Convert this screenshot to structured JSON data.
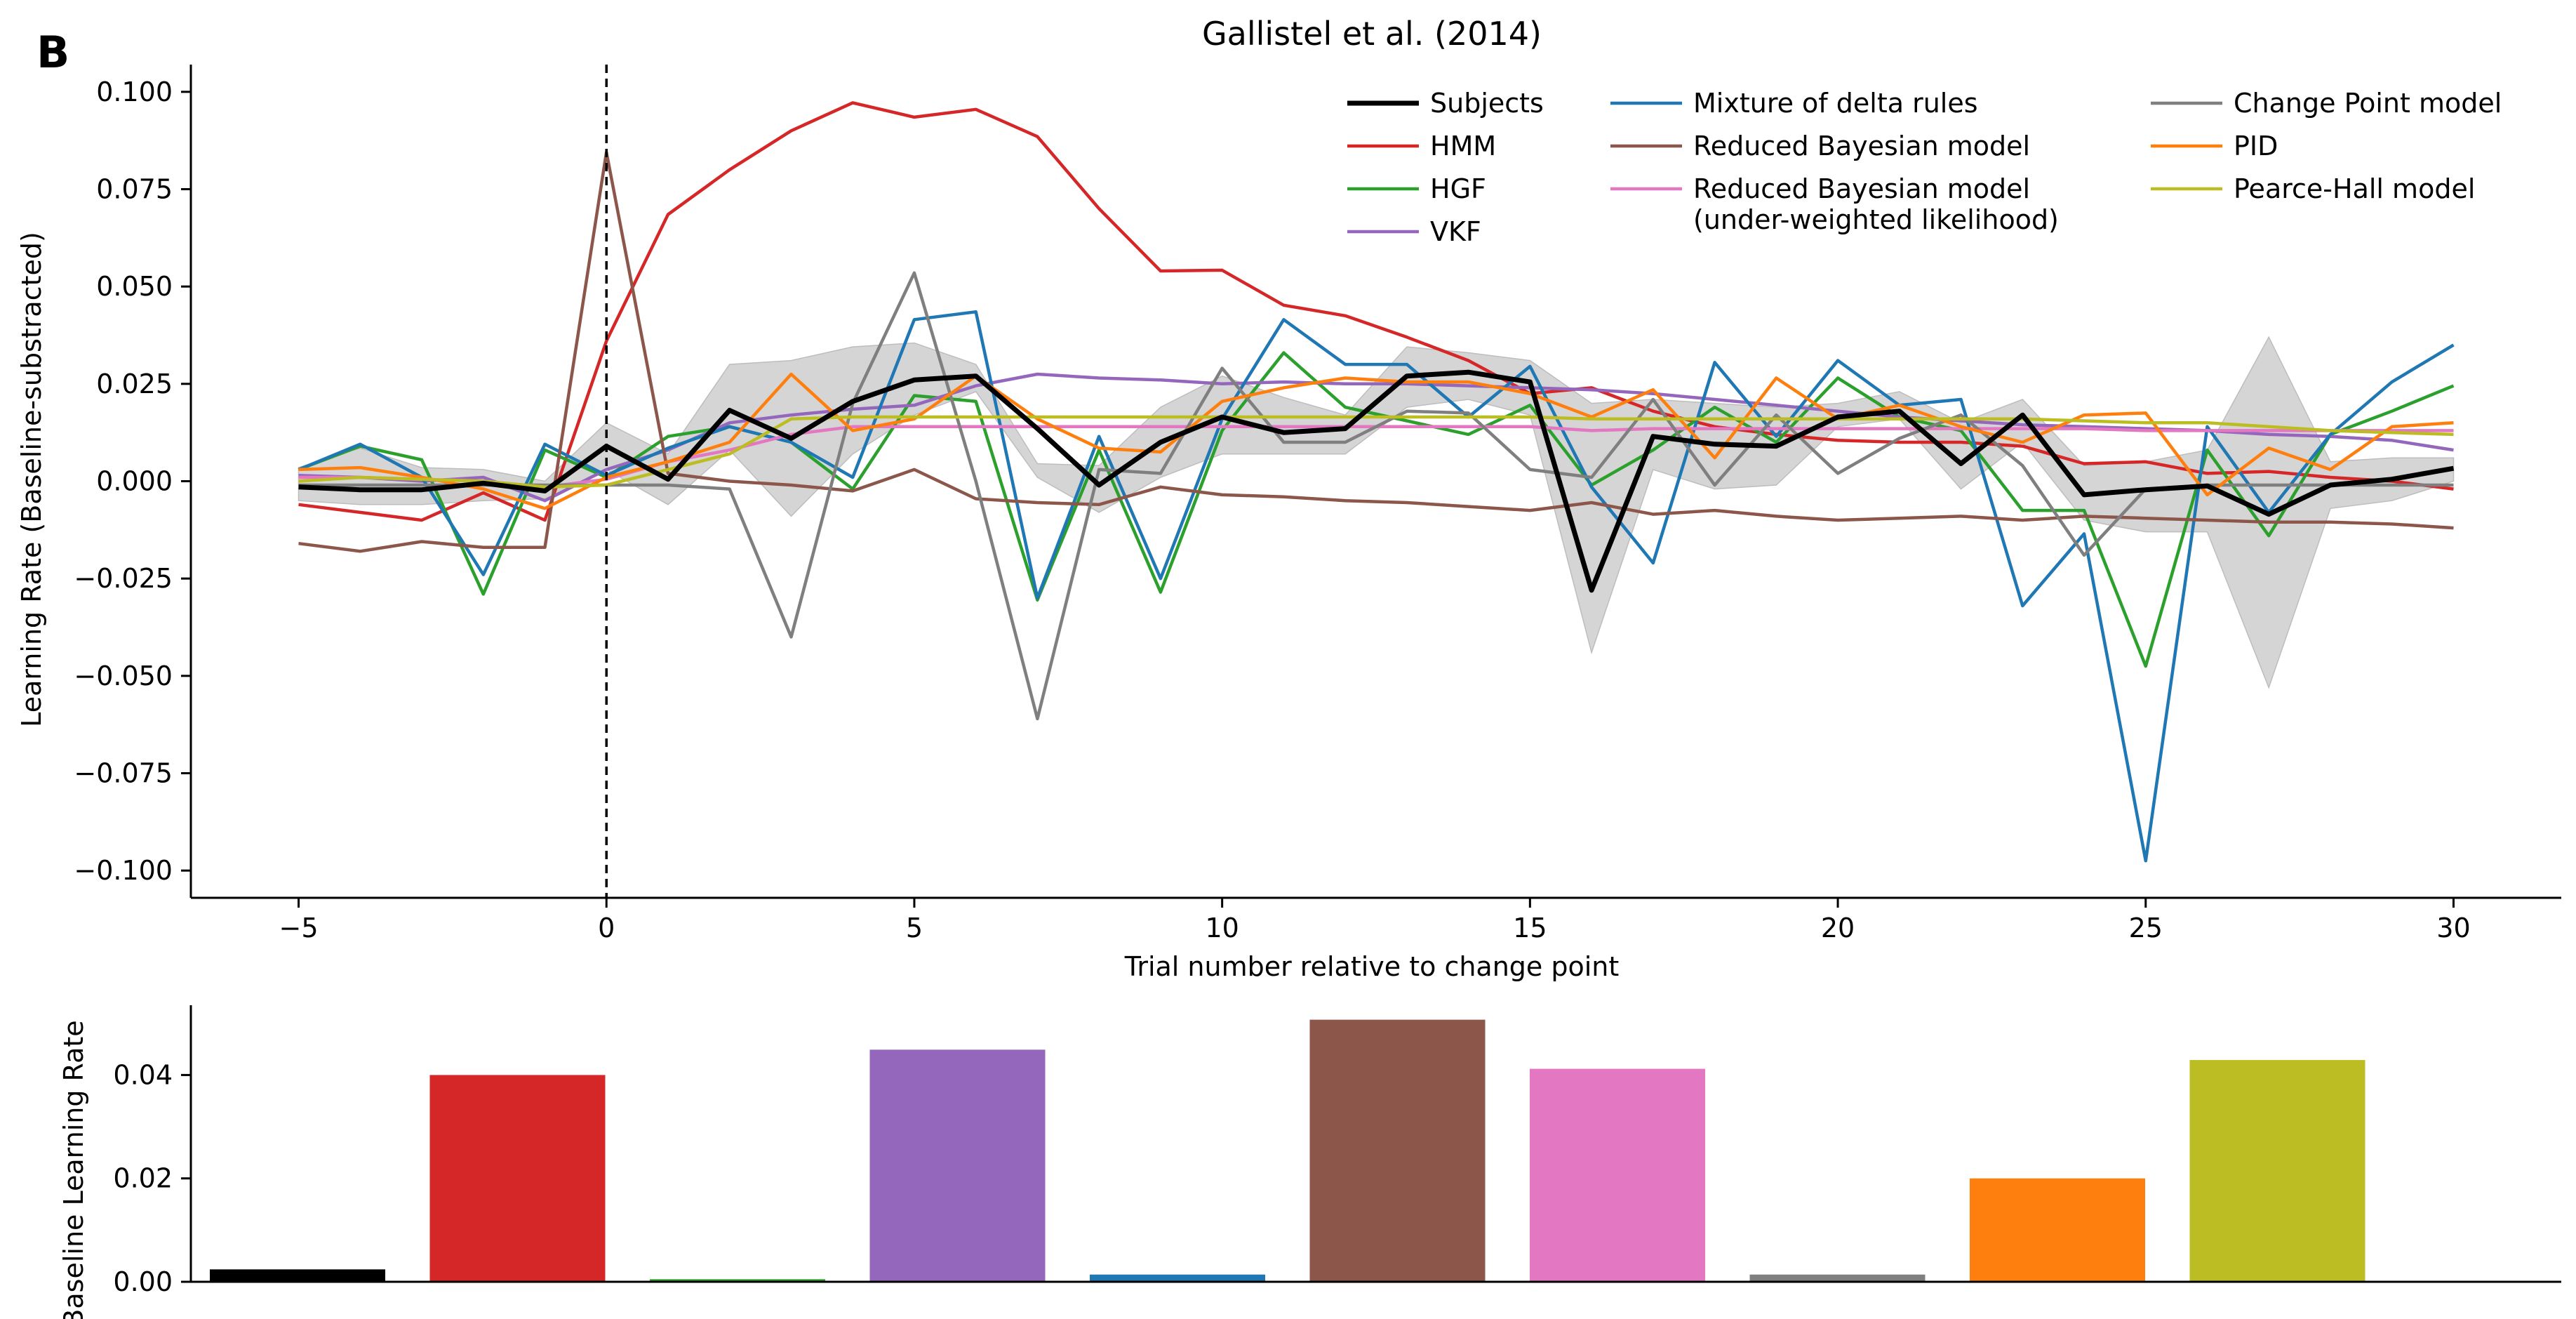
{
  "figure": {
    "panel_letter": "B",
    "title": "Gallistel et al. (2014)"
  },
  "chart_data": [
    {
      "type": "line",
      "title": "Gallistel et al. (2014)",
      "xlabel": "Trial number relative to change point",
      "ylabel": "Learning Rate (Baseline-substracted)",
      "xlim": [
        -6.75,
        31.75
      ],
      "ylim": [
        -0.107,
        0.107
      ],
      "x_ticks": [
        -5,
        0,
        5,
        10,
        15,
        20,
        25,
        30
      ],
      "x_tick_labels": [
        "−5",
        "0",
        "5",
        "10",
        "15",
        "20",
        "25",
        "30"
      ],
      "y_ticks": [
        0.1,
        0.075,
        0.05,
        0.025,
        0.0,
        -0.025,
        -0.05,
        -0.075,
        -0.1
      ],
      "y_tick_labels": [
        "0.100",
        "0.075",
        "0.050",
        "0.025",
        "0.000",
        "−0.025",
        "−0.050",
        "−0.075",
        "−0.100"
      ],
      "vertical_line_x": 0,
      "grid": false,
      "legend": {
        "position": "top-right",
        "columns": 3
      },
      "x": [
        -5,
        -4,
        -3,
        -2,
        -1,
        0,
        1,
        2,
        3,
        4,
        5,
        6,
        7,
        8,
        9,
        10,
        11,
        12,
        13,
        14,
        15,
        16,
        17,
        18,
        19,
        20,
        21,
        22,
        23,
        24,
        25,
        26,
        27,
        28,
        29,
        30
      ],
      "subjects_band": {
        "color": "#d3d3d3",
        "upper": [
          0.0035,
          0.0085,
          0.0035,
          0.003,
          0.0,
          0.015,
          0.007,
          0.03,
          0.031,
          0.0345,
          0.0355,
          0.03,
          0.0045,
          0.004,
          0.019,
          0.027,
          0.0215,
          0.017,
          0.0345,
          0.033,
          0.031,
          0.02,
          0.021,
          0.02,
          0.019,
          0.02,
          0.023,
          0.015,
          0.021,
          0.004,
          0.005,
          0.008,
          0.037,
          0.005,
          0.006,
          0.006
        ],
        "lower": [
          -0.005,
          -0.006,
          -0.006,
          -0.005,
          -0.0045,
          0.003,
          -0.006,
          0.008,
          -0.009,
          0.007,
          0.017,
          0.023,
          0.001,
          -0.008,
          0.001,
          0.007,
          0.007,
          0.007,
          0.019,
          0.021,
          0.017,
          -0.044,
          0.003,
          -0.002,
          -0.001,
          0.014,
          0.016,
          -0.002,
          0.01,
          -0.01,
          -0.013,
          -0.013,
          -0.053,
          -0.007,
          -0.005,
          0.0
        ]
      },
      "series": [
        {
          "name": "Subjects",
          "color": "#000000",
          "width": 7,
          "values": [
            -0.0015,
            -0.0022,
            -0.0022,
            -0.0005,
            -0.0025,
            0.009,
            0.0005,
            0.0182,
            0.011,
            0.0205,
            0.026,
            0.027,
            0.0135,
            -0.001,
            0.01,
            0.0165,
            0.0125,
            0.0135,
            0.027,
            0.028,
            0.0255,
            -0.028,
            0.0115,
            0.0095,
            0.009,
            0.0165,
            0.018,
            0.0045,
            0.017,
            -0.0035,
            -0.0022,
            -0.0012,
            -0.0085,
            -0.001,
            0.0005,
            0.0033
          ]
        },
        {
          "name": "HMM",
          "color": "#d62728",
          "width": 4.5,
          "values": [
            -0.006,
            -0.008,
            -0.01,
            -0.003,
            -0.01,
            0.036,
            0.0685,
            0.08,
            0.09,
            0.0972,
            0.0935,
            0.0955,
            0.0885,
            0.07,
            0.054,
            0.0542,
            0.0452,
            0.0425,
            0.037,
            0.031,
            0.0225,
            0.024,
            0.018,
            0.014,
            0.012,
            0.0105,
            0.01,
            0.01,
            0.009,
            0.0045,
            0.005,
            0.002,
            0.0025,
            0.001,
            0.0,
            -0.002
          ]
        },
        {
          "name": "HGF",
          "color": "#2ca02c",
          "width": 4.5,
          "values": [
            0.003,
            0.009,
            0.0055,
            -0.029,
            0.008,
            0.001,
            0.0115,
            0.014,
            0.01,
            -0.002,
            0.022,
            0.0205,
            -0.0305,
            0.008,
            -0.0285,
            0.013,
            0.033,
            0.019,
            0.0155,
            0.012,
            0.0195,
            -0.001,
            0.008,
            0.019,
            0.01,
            0.0265,
            0.0165,
            0.013,
            -0.0075,
            -0.0075,
            -0.0475,
            0.008,
            -0.014,
            0.012,
            0.018,
            0.0245
          ]
        },
        {
          "name": "VKF",
          "color": "#9467bd",
          "width": 4.5,
          "values": [
            0.0015,
            0.001,
            0.0,
            0.001,
            -0.005,
            0.003,
            0.008,
            0.015,
            0.017,
            0.0185,
            0.0195,
            0.0245,
            0.0275,
            0.0265,
            0.026,
            0.025,
            0.0255,
            0.025,
            0.025,
            0.0245,
            0.024,
            0.0235,
            0.0225,
            0.021,
            0.0195,
            0.018,
            0.0165,
            0.0155,
            0.0145,
            0.014,
            0.0135,
            0.013,
            0.012,
            0.0115,
            0.0105,
            0.008
          ]
        },
        {
          "name": "Mixture of delta rules",
          "color": "#1f77b4",
          "width": 4.5,
          "values": [
            0.003,
            0.0095,
            0.001,
            -0.024,
            0.0095,
            0.0015,
            0.0085,
            0.014,
            0.01,
            0.001,
            0.0415,
            0.0435,
            -0.03,
            0.0115,
            -0.025,
            0.016,
            0.0415,
            0.03,
            0.03,
            0.0165,
            0.0295,
            -0.0015,
            -0.021,
            0.0305,
            0.0115,
            0.031,
            0.0195,
            0.021,
            -0.032,
            -0.0135,
            -0.0975,
            0.014,
            -0.008,
            0.012,
            0.0255,
            0.035
          ]
        },
        {
          "name": "Reduced Bayesian model",
          "color": "#8c564b",
          "width": 4.5,
          "values": [
            -0.016,
            -0.018,
            -0.0155,
            -0.017,
            -0.017,
            0.0845,
            0.002,
            0.0,
            -0.001,
            -0.0025,
            0.003,
            -0.0045,
            -0.0055,
            -0.006,
            -0.0015,
            -0.0035,
            -0.004,
            -0.005,
            -0.0055,
            -0.0065,
            -0.0075,
            -0.0055,
            -0.0085,
            -0.0075,
            -0.009,
            -0.01,
            -0.0095,
            -0.009,
            -0.01,
            -0.009,
            -0.0095,
            -0.01,
            -0.0105,
            -0.0105,
            -0.011,
            -0.012
          ]
        },
        {
          "name": "Reduced Bayesian model\n(under-weighted likelihood)",
          "color": "#e377c2",
          "width": 4.5,
          "values": [
            0.001,
            0.001,
            0.0005,
            0.0,
            -0.0015,
            0.0005,
            0.005,
            0.008,
            0.012,
            0.014,
            0.014,
            0.014,
            0.014,
            0.014,
            0.014,
            0.014,
            0.014,
            0.014,
            0.014,
            0.014,
            0.014,
            0.013,
            0.0135,
            0.0135,
            0.0135,
            0.0135,
            0.0135,
            0.0135,
            0.0135,
            0.0135,
            0.013,
            0.013,
            0.013,
            0.013,
            0.013,
            0.013
          ]
        },
        {
          "name": "Change Point model",
          "color": "#7f7f7f",
          "width": 4.5,
          "values": [
            -0.001,
            -0.001,
            -0.001,
            -0.001,
            -0.001,
            -0.001,
            -0.001,
            -0.002,
            -0.04,
            0.02,
            0.0535,
            0.0,
            -0.061,
            0.003,
            0.002,
            0.029,
            0.01,
            0.01,
            0.018,
            0.0175,
            0.003,
            0.001,
            0.021,
            -0.001,
            0.017,
            0.002,
            0.011,
            0.017,
            0.004,
            -0.019,
            -0.002,
            -0.001,
            -0.001,
            -0.001,
            -0.001,
            -0.001
          ]
        },
        {
          "name": "PID",
          "color": "#ff7f0e",
          "width": 4.5,
          "values": [
            0.003,
            0.0035,
            0.001,
            -0.002,
            -0.007,
            0.001,
            0.005,
            0.01,
            0.0275,
            0.013,
            0.016,
            0.027,
            0.016,
            0.0085,
            0.0075,
            0.0205,
            0.024,
            0.0265,
            0.0255,
            0.0255,
            0.0225,
            0.0165,
            0.0235,
            0.006,
            0.0265,
            0.016,
            0.0195,
            0.014,
            0.01,
            0.017,
            0.0175,
            -0.0035,
            0.0085,
            0.003,
            0.014,
            0.015
          ]
        },
        {
          "name": "Pearce-Hall model",
          "color": "#bcbd22",
          "width": 4.5,
          "values": [
            0.0,
            0.001,
            0.0005,
            0.0,
            -0.0015,
            -0.001,
            0.003,
            0.007,
            0.016,
            0.0165,
            0.0165,
            0.0165,
            0.0165,
            0.0165,
            0.0165,
            0.0165,
            0.0165,
            0.0165,
            0.0165,
            0.0165,
            0.0165,
            0.016,
            0.016,
            0.016,
            0.016,
            0.016,
            0.016,
            0.016,
            0.016,
            0.0155,
            0.015,
            0.015,
            0.014,
            0.013,
            0.0125,
            0.012
          ]
        }
      ]
    },
    {
      "type": "bar",
      "xlabel": "",
      "ylabel": "Baseline Learning Rate",
      "ylim": [
        0,
        0.0535
      ],
      "y_ticks": [
        0.0,
        0.02,
        0.04
      ],
      "y_tick_labels": [
        "0.00",
        "0.02",
        "0.04"
      ],
      "categories": [
        "Subjects",
        "HMM",
        "HGF",
        "VKF",
        "Mixture of delta rules",
        "Reduced Bayesian model",
        "Reduced Bayesian model (under-weighted likelihood)",
        "Change Point model",
        "PID",
        "Pearce-Hall model"
      ],
      "colors": [
        "#000000",
        "#d62728",
        "#2ca02c",
        "#9467bd",
        "#1f77b4",
        "#8c564b",
        "#e377c2",
        "#7f7f7f",
        "#ff7f0e",
        "#bcbd22"
      ],
      "values": [
        0.0024,
        0.04,
        0.0005,
        0.0449,
        0.0014,
        0.0507,
        0.0412,
        0.0014,
        0.02,
        0.0429
      ]
    }
  ]
}
